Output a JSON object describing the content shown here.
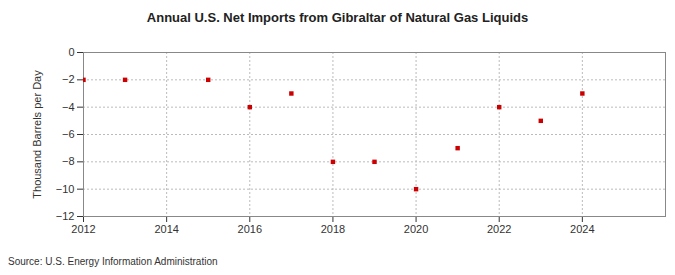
{
  "chart_data": {
    "type": "scatter",
    "title": "Annual U.S. Net Imports from Gibraltar of Natural Gas Liquids",
    "y_label": "Thousand Barrels per Day",
    "source": "Source: U.S. Energy Information Administration",
    "x": [
      2012,
      2013,
      2015,
      2016,
      2017,
      2018,
      2019,
      2020,
      2021,
      2022,
      2023,
      2024
    ],
    "values": [
      -2,
      -2,
      -2,
      -4,
      -3,
      -8,
      -8,
      -10,
      -7,
      -4,
      -5,
      -3
    ],
    "color": "#cc0000",
    "marker": "square",
    "xlim": [
      2012,
      2026
    ],
    "xticks": [
      2012,
      2014,
      2016,
      2018,
      2020,
      2022,
      2024
    ],
    "ylim": [
      -12,
      0
    ],
    "yticks": [
      -12,
      -10,
      -8,
      -6,
      -4,
      -2,
      0
    ],
    "grid": true
  }
}
